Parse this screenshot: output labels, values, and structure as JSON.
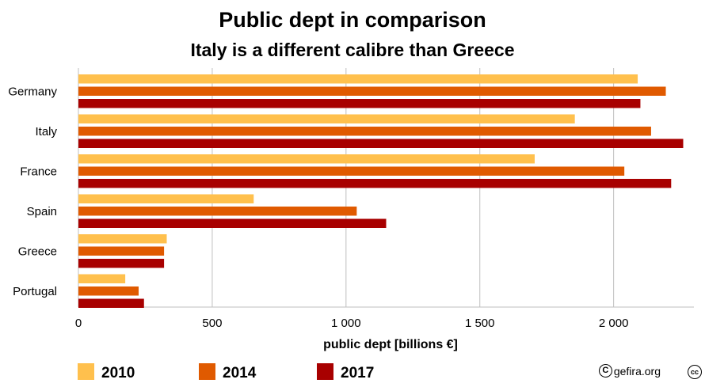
{
  "chart_data": {
    "type": "bar",
    "orientation": "horizontal",
    "title": "Public dept in comparison",
    "subtitle": "Italy is a different calibre than Greece",
    "xlabel": "public dept [billions €]",
    "ylabel": "",
    "categories": [
      "Germany",
      "Italy",
      "France",
      "Spain",
      "Greece",
      "Portugal"
    ],
    "series": [
      {
        "name": "2010",
        "color": "#ffc04d",
        "values": [
          2090,
          1855,
          1705,
          655,
          330,
          175
        ]
      },
      {
        "name": "2014",
        "color": "#e05a00",
        "values": [
          2195,
          2140,
          2040,
          1040,
          320,
          225
        ]
      },
      {
        "name": "2017",
        "color": "#a80000",
        "values": [
          2100,
          2260,
          2215,
          1150,
          320,
          245
        ]
      }
    ],
    "xlim": [
      0,
      2300
    ],
    "xticks": [
      0,
      500,
      1000,
      1500,
      2000
    ],
    "xtick_labels": [
      "0",
      "500",
      "1 000",
      "1 500",
      "2 000"
    ],
    "grid": true,
    "legend_position": "bottom-left"
  },
  "credit": {
    "text": "gefira.org",
    "copyright_symbol": "C",
    "cc_symbol": "cc"
  }
}
